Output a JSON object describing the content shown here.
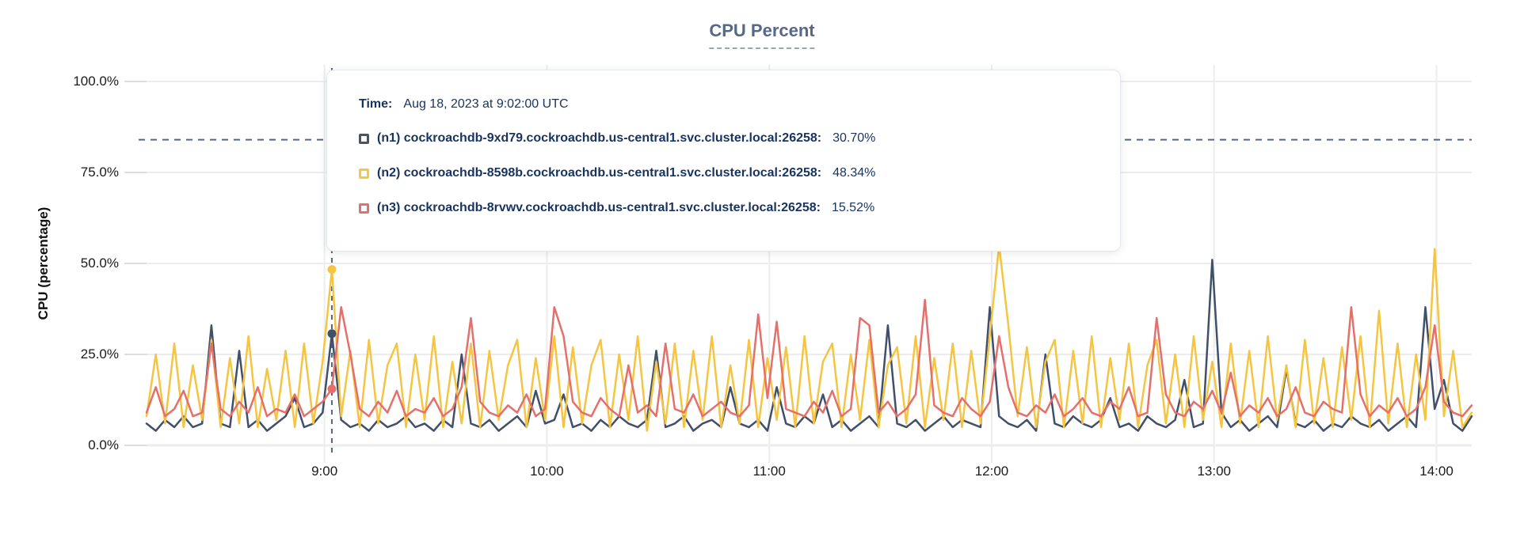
{
  "title": "CPU Percent",
  "y_axis_title": "CPU (percentage)",
  "tooltip": {
    "time_label": "Time:",
    "time_value": "Aug 18, 2023 at 9:02:00 UTC",
    "rows": [
      {
        "label": "(n1) cockroachdb-9xd79.cockroachdb.us-central1.svc.cluster.local:26258:",
        "value": "30.70%",
        "color": "#46536b"
      },
      {
        "label": "(n2) cockroachdb-8598b.cockroachdb.us-central1.svc.cluster.local:26258:",
        "value": "48.34%",
        "color": "#f5c843"
      },
      {
        "label": "(n3) cockroachdb-8rvwv.cockroachdb.us-central1.svc.cluster.local:26258:",
        "value": "15.52%",
        "color": "#e1716c"
      }
    ]
  },
  "chart_data": {
    "type": "line",
    "title": "CPU Percent",
    "xlabel": "",
    "ylabel": "CPU (percentage)",
    "ylim": [
      0,
      100
    ],
    "grid": true,
    "legend_position": "tooltip-overlay",
    "y_ticks": [
      {
        "value": 0,
        "label": "0.0%"
      },
      {
        "value": 25,
        "label": "25.0%"
      },
      {
        "value": 50,
        "label": "50.0%"
      },
      {
        "value": 75,
        "label": "75.0%"
      },
      {
        "value": 100,
        "label": "100.0%"
      }
    ],
    "x_start_minutes": 492,
    "x_step_minutes": 2.5,
    "x_ticks": [
      {
        "minutes": 540,
        "label": "9:00"
      },
      {
        "minutes": 600,
        "label": "10:00"
      },
      {
        "minutes": 660,
        "label": "11:00"
      },
      {
        "minutes": 720,
        "label": "12:00"
      },
      {
        "minutes": 780,
        "label": "13:00"
      },
      {
        "minutes": 840,
        "label": "14:00"
      }
    ],
    "threshold_line_percent": 84,
    "highlight": {
      "minutes": 542,
      "index": 20,
      "time": "Aug 18, 2023 at 9:02:00 UTC",
      "points": [
        {
          "series": 0,
          "value": 30.7
        },
        {
          "series": 1,
          "value": 48.34
        },
        {
          "series": 2,
          "value": 15.52
        }
      ]
    },
    "series": [
      {
        "name": "(n1) cockroachdb-9xd79.cockroachdb.us-central1.svc.cluster.local:26258",
        "color": "#404f6a",
        "values": [
          6,
          4,
          7,
          5,
          8,
          5,
          6,
          33,
          6,
          5,
          26,
          5,
          7,
          4,
          6,
          8,
          13,
          5,
          6,
          9,
          30.7,
          7,
          5,
          6,
          4,
          7,
          5,
          6,
          8,
          5,
          6,
          4,
          7,
          5,
          25,
          6,
          5,
          7,
          4,
          6,
          8,
          5,
          15,
          6,
          7,
          14,
          5,
          6,
          4,
          7,
          5,
          8,
          6,
          5,
          7,
          26,
          5,
          6,
          8,
          4,
          6,
          7,
          5,
          16,
          6,
          5,
          7,
          4,
          16,
          6,
          5,
          8,
          6,
          14,
          5,
          7,
          4,
          6,
          8,
          5,
          33,
          6,
          5,
          7,
          4,
          6,
          8,
          5,
          7,
          6,
          5,
          38,
          8,
          6,
          5,
          7,
          4,
          25,
          6,
          5,
          8,
          6,
          5,
          7,
          13,
          5,
          6,
          4,
          8,
          6,
          5,
          7,
          18,
          5,
          6,
          51,
          9,
          5,
          7,
          4,
          6,
          8,
          5,
          21,
          6,
          5,
          7,
          4,
          6,
          5,
          8,
          6,
          5,
          7,
          4,
          6,
          8,
          5,
          38,
          10,
          18,
          6,
          4,
          8
        ]
      },
      {
        "name": "(n2) cockroachdb-8598b.cockroachdb.us-central1.svc.cluster.local:26258",
        "color": "#f5c440",
        "values": [
          8,
          25,
          6,
          28,
          5,
          22,
          7,
          29,
          5,
          24,
          6,
          30,
          5,
          21,
          7,
          26,
          5,
          28,
          6,
          23,
          48.34,
          8,
          26,
          5,
          29,
          6,
          22,
          28,
          5,
          25,
          7,
          30,
          5,
          23,
          6,
          28,
          5,
          26,
          7,
          22,
          29,
          5,
          24,
          7,
          30,
          5,
          27,
          6,
          22,
          29,
          5,
          25,
          7,
          30,
          4,
          23,
          6,
          28,
          5,
          26,
          7,
          30,
          5,
          22,
          6,
          29,
          5,
          24,
          7,
          27,
          5,
          30,
          6,
          23,
          28,
          5,
          25,
          7,
          29,
          5,
          22,
          27,
          6,
          30,
          5,
          24,
          7,
          28,
          5,
          26,
          6,
          30,
          55,
          33,
          8,
          27,
          5,
          23,
          29,
          5,
          26,
          6,
          30,
          5,
          24,
          7,
          28,
          5,
          22,
          29,
          6,
          25,
          5,
          30,
          7,
          23,
          5,
          28,
          6,
          26,
          5,
          30,
          7,
          22,
          5,
          29,
          6,
          24,
          5,
          27,
          7,
          30,
          5,
          37,
          6,
          28,
          5,
          25,
          7,
          54,
          8,
          26,
          5,
          9
        ]
      },
      {
        "name": "(n3) cockroachdb-8rvwv.cockroachdb.us-central1.svc.cluster.local:26258",
        "color": "#e56f6a",
        "values": [
          9,
          16,
          8,
          10,
          15,
          8,
          9,
          28,
          10,
          8,
          12,
          9,
          16,
          8,
          10,
          9,
          14,
          8,
          10,
          12,
          15.52,
          38,
          25,
          10,
          8,
          12,
          9,
          15,
          8,
          10,
          9,
          13,
          8,
          10,
          16,
          35,
          12,
          9,
          8,
          11,
          9,
          14,
          8,
          10,
          38,
          30,
          12,
          9,
          8,
          13,
          10,
          8,
          22,
          9,
          11,
          8,
          28,
          10,
          9,
          14,
          8,
          10,
          12,
          9,
          8,
          11,
          36,
          13,
          34,
          10,
          9,
          8,
          12,
          9,
          15,
          8,
          10,
          35,
          33,
          9,
          12,
          8,
          10,
          14,
          40,
          11,
          9,
          8,
          13,
          10,
          8,
          12,
          30,
          16,
          9,
          8,
          11,
          9,
          14,
          8,
          10,
          13,
          9,
          8,
          12,
          10,
          16,
          8,
          9,
          35,
          14,
          9,
          8,
          12,
          10,
          15,
          9,
          20,
          8,
          11,
          9,
          13,
          8,
          10,
          16,
          9,
          8,
          12,
          10,
          9,
          38,
          14,
          8,
          11,
          9,
          13,
          8,
          10,
          16,
          33,
          12,
          9,
          8,
          11
        ]
      }
    ]
  }
}
